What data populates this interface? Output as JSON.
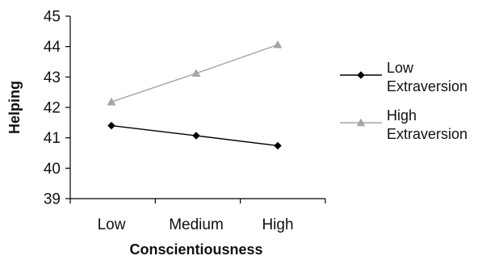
{
  "chart_data": {
    "type": "line",
    "title": "",
    "xlabel": "Conscientiousness",
    "ylabel": "Helping",
    "categories": [
      "Low",
      "Medium",
      "High"
    ],
    "ylim": [
      39,
      45
    ],
    "yticks": [
      39,
      40,
      41,
      42,
      43,
      44,
      45
    ],
    "grid": false,
    "legend_position": "right",
    "series": [
      {
        "name_lines": [
          "Low",
          "Extraversion"
        ],
        "values": [
          41.4,
          41.07,
          40.74
        ],
        "color": "#000000",
        "marker": "diamond"
      },
      {
        "name_lines": [
          "High",
          "Extraversion"
        ],
        "values": [
          42.18,
          43.12,
          44.06
        ],
        "color": "#a6a6a6",
        "marker": "triangle"
      }
    ]
  }
}
